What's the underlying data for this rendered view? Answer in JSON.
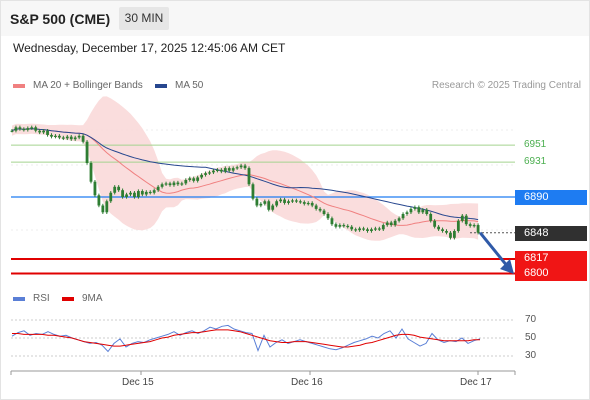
{
  "header": {
    "title": "S&P 500 (CME)",
    "timeframe": "30 MIN",
    "datetime": "Wednesday, December 17, 2025 12:45:06 AM CET"
  },
  "legend": {
    "ma20": "MA 20 + Bollinger Bands",
    "ma50": "MA 50",
    "rsi": "RSI",
    "ma9": "9MA"
  },
  "credit": "Research © 2025 Trading Central",
  "colors": {
    "ma20": "#f08080",
    "ma50": "#27478f",
    "band_fill": "#f9d7d7",
    "candle": "#2e7d32",
    "resistance_line": "#1e7cf2",
    "support_line": "#e00000",
    "target_line": "#a4d38f",
    "rsi": "#5a7fd6",
    "rsi_ma": "#e00000"
  },
  "levels": {
    "res2": "6951",
    "res1": "6931",
    "pivot": "6890",
    "last": "6848",
    "sup1": "6817",
    "sup2": "6800"
  },
  "rsi_axis": {
    "t70": "70",
    "t50": "50",
    "t30": "30"
  },
  "x_labels": {
    "d1": "Dec 15",
    "d2": "Dec 16",
    "d3": "Dec 17"
  },
  "chart_data": [
    {
      "type": "candlestick",
      "title": "S&P 500 (CME)",
      "timeframe": "30 MIN",
      "ylim": [
        6795,
        6995
      ],
      "x_labels": [
        "Dec 15",
        "Dec 16",
        "Dec 17"
      ],
      "close": [
        6968,
        6972,
        6970,
        6969,
        6971,
        6972,
        6968,
        6966,
        6968,
        6963,
        6961,
        6962,
        6960,
        6959,
        6961,
        6958,
        6960,
        6962,
        6955,
        6930,
        6908,
        6892,
        6880,
        6872,
        6885,
        6895,
        6902,
        6898,
        6890,
        6893,
        6895,
        6890,
        6897,
        6893,
        6896,
        6895,
        6898,
        6902,
        6905,
        6906,
        6904,
        6907,
        6905,
        6906,
        6910,
        6912,
        6909,
        6913,
        6916,
        6918,
        6919,
        6921,
        6922,
        6920,
        6924,
        6921,
        6924,
        6925,
        6927,
        6924,
        6905,
        6888,
        6880,
        6882,
        6885,
        6875,
        6880,
        6885,
        6887,
        6883,
        6885,
        6886,
        6885,
        6884,
        6882,
        6883,
        6880,
        6876,
        6874,
        6870,
        6865,
        6858,
        6855,
        6857,
        6856,
        6855,
        6852,
        6851,
        6853,
        6852,
        6850,
        6852,
        6853,
        6852,
        6857,
        6860,
        6857,
        6862,
        6865,
        6870,
        6872,
        6876,
        6878,
        6872,
        6875,
        6870,
        6862,
        6855,
        6852,
        6850,
        6848,
        6842,
        6850,
        6862,
        6868,
        6858,
        6856,
        6857,
        6848
      ],
      "indicators": [
        "MA 20 + Bollinger Bands",
        "MA 50"
      ],
      "horizontal_levels": [
        {
          "label": "6951",
          "value": 6951,
          "kind": "resistance target"
        },
        {
          "label": "6931",
          "value": 6931,
          "kind": "resistance target"
        },
        {
          "label": "6890",
          "value": 6890,
          "kind": "pivot"
        },
        {
          "label": "6848",
          "value": 6848,
          "kind": "last price"
        },
        {
          "label": "6817",
          "value": 6817,
          "kind": "support target"
        },
        {
          "label": "6800",
          "value": 6800,
          "kind": "support target"
        }
      ],
      "projection": {
        "direction": "down",
        "from": 6848,
        "to": 6817
      }
    },
    {
      "type": "line",
      "title": "RSI",
      "ylim": [
        20,
        80
      ],
      "yticks": [
        70,
        50,
        30
      ],
      "series": [
        {
          "name": "RSI",
          "values": [
            52,
            56,
            58,
            53,
            55,
            54,
            57,
            54,
            52,
            53,
            50,
            48,
            46,
            44,
            45,
            42,
            35,
            44,
            49,
            40,
            44,
            46,
            45,
            48,
            50,
            52,
            54,
            57,
            53,
            56,
            58,
            55,
            58,
            62,
            60,
            63,
            64,
            60,
            58,
            56,
            55,
            36,
            53,
            40,
            45,
            48,
            44,
            46,
            48,
            46,
            44,
            42,
            40,
            38,
            37,
            39,
            42,
            45,
            47,
            49,
            52,
            50,
            55,
            58,
            50,
            60,
            49,
            45,
            41,
            44,
            55,
            48,
            45,
            47,
            46,
            50,
            44,
            47,
            49
          ]
        },
        {
          "name": "9MA",
          "values": [
            55,
            55,
            54,
            54,
            54,
            54,
            53,
            53,
            52,
            51,
            50,
            48,
            46,
            45,
            44,
            43,
            42,
            41,
            41,
            42,
            43,
            44,
            45,
            46,
            48,
            50,
            51,
            53,
            54,
            55,
            56,
            56,
            57,
            58,
            59,
            59,
            59,
            58,
            57,
            55,
            53,
            51,
            49,
            47,
            46,
            45,
            45,
            46,
            46,
            46,
            45,
            44,
            43,
            42,
            41,
            40,
            40,
            41,
            42,
            44,
            45,
            47,
            49,
            51,
            53,
            54,
            54,
            53,
            51,
            50,
            49,
            48,
            47,
            47,
            47,
            47,
            47,
            48,
            48
          ]
        }
      ]
    }
  ]
}
